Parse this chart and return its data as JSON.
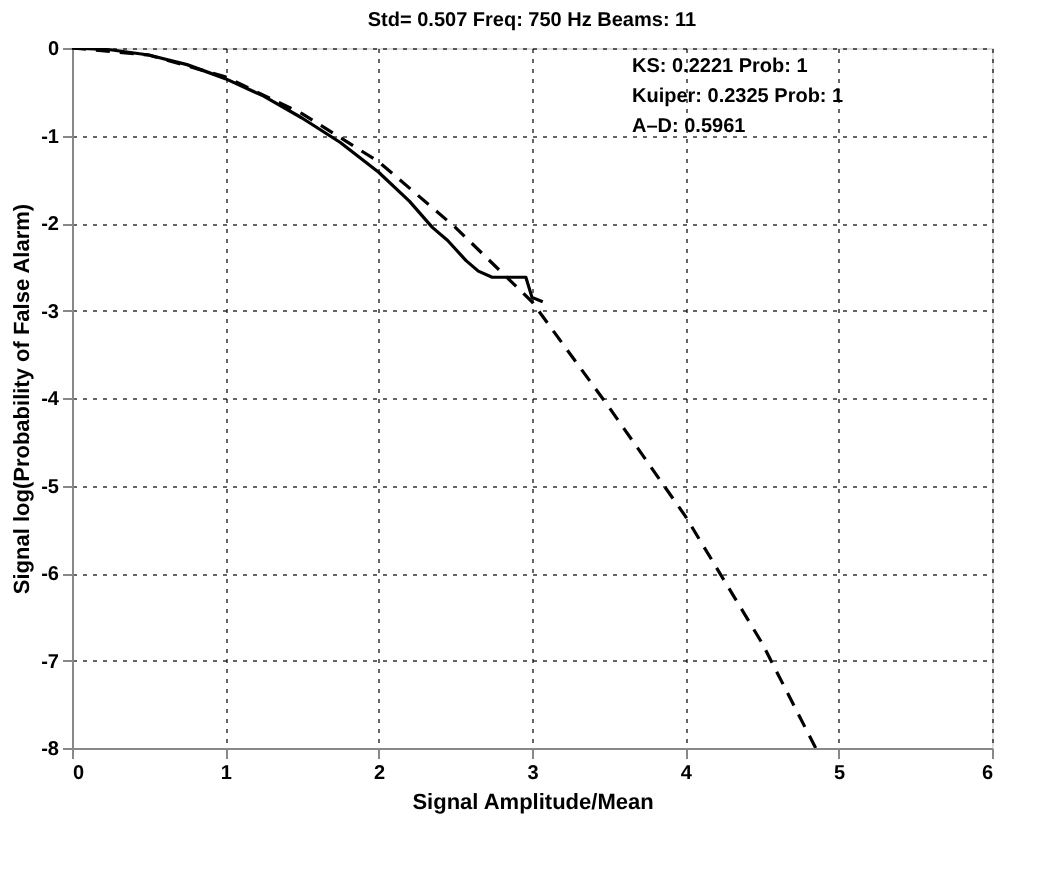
{
  "chart_data": {
    "type": "line",
    "title": "Std= 0.507  Freq: 750 Hz  Beams: 11",
    "xlabel": "Signal Amplitude/Mean",
    "ylabel": "Signal log(Probability of False Alarm)",
    "xlim": [
      0,
      6
    ],
    "ylim": [
      -8,
      0
    ],
    "xticks": [
      0,
      1,
      2,
      3,
      4,
      5,
      6
    ],
    "yticks": [
      -8,
      -7,
      -6,
      -5,
      -4,
      -3,
      -2,
      -1,
      0
    ],
    "grid": true,
    "annotations": [
      "KS:  0.2221  Prob: 1",
      "Kuiper:  0.2325  Prob: 1",
      "A–D:  0.5961"
    ],
    "series": [
      {
        "color": "#000000",
        "line_style": "solid",
        "x": [
          0,
          0.25,
          0.5,
          0.75,
          1,
          1.25,
          1.5,
          1.75,
          2,
          2.2,
          2.35,
          2.45,
          2.57,
          2.65,
          2.74,
          2.96,
          3.0,
          3.07
        ],
        "values": [
          0,
          -0.02,
          -0.08,
          -0.19,
          -0.35,
          -0.55,
          -0.8,
          -1.08,
          -1.42,
          -1.75,
          -2.05,
          -2.2,
          -2.43,
          -2.55,
          -2.62,
          -2.62,
          -2.85,
          -2.9
        ]
      },
      {
        "color": "#000000",
        "line_style": "dashed",
        "x": [
          0,
          0.5,
          1,
          1.5,
          2,
          2.5,
          3,
          3.5,
          4,
          4.5,
          4.85
        ],
        "values": [
          0,
          -0.08,
          -0.33,
          -0.75,
          -1.3,
          -2.05,
          -2.9,
          -4.1,
          -5.35,
          -6.8,
          -8
        ]
      }
    ]
  }
}
